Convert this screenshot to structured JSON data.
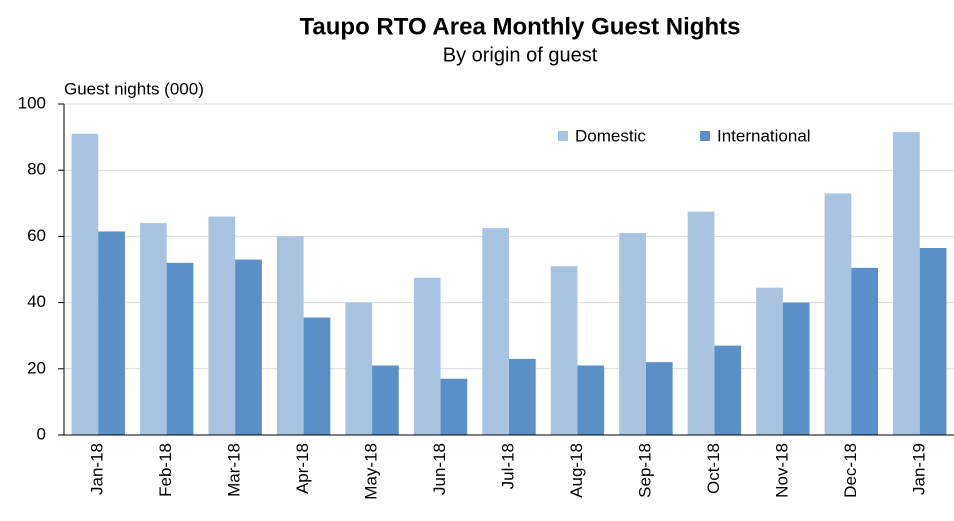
{
  "chart_data": {
    "type": "bar",
    "title": "Taupo RTO Area Monthly Guest Nights",
    "subtitle": "By origin  of guest",
    "y_label": "Guest nights (000)",
    "categories": [
      "Jan-18",
      "Feb-18",
      "Mar-18",
      "Apr-18",
      "May-18",
      "Jun-18",
      "Jul-18",
      "Aug-18",
      "Sep-18",
      "Oct-18",
      "Nov-18",
      "Dec-18",
      "Jan-19"
    ],
    "series": [
      {
        "name": "Domestic",
        "color": "#a9c4e0",
        "values": [
          91,
          64,
          66,
          60,
          40,
          47.5,
          62.5,
          51,
          61,
          67.5,
          44.5,
          73,
          91.5
        ]
      },
      {
        "name": "International",
        "color": "#5b8fc7",
        "values": [
          61.5,
          52,
          53,
          35.5,
          21,
          17,
          23,
          21,
          22,
          27,
          40,
          50.5,
          56.5
        ]
      }
    ],
    "ylim": [
      0,
      100
    ],
    "yticks": [
      0,
      20,
      40,
      60,
      80,
      100
    ],
    "grid": true,
    "legend": "top-right"
  }
}
